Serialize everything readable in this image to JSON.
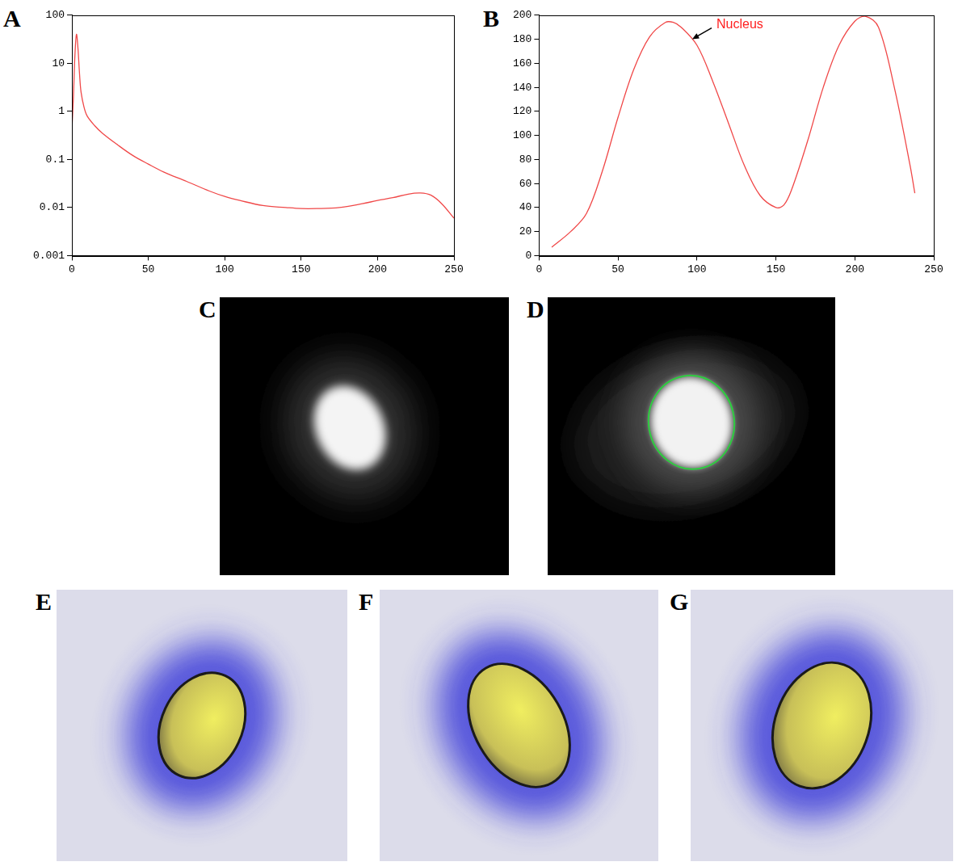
{
  "chart_data": [
    {
      "label": "A",
      "type": "line",
      "log": "y",
      "color": "#f04848",
      "grid": false,
      "x": [
        0,
        1,
        2,
        3,
        4,
        5,
        6,
        8,
        10,
        15,
        20,
        30,
        40,
        50,
        60,
        75,
        90,
        100,
        110,
        125,
        140,
        150,
        160,
        175,
        190,
        200,
        210,
        220,
        228,
        235,
        242,
        250
      ],
      "values": [
        0.4,
        2,
        15,
        40,
        20,
        6,
        2.5,
        1.2,
        0.8,
        0.5,
        0.35,
        0.2,
        0.12,
        0.08,
        0.055,
        0.035,
        0.022,
        0.017,
        0.014,
        0.011,
        0.01,
        0.0095,
        0.0095,
        0.01,
        0.012,
        0.014,
        0.016,
        0.019,
        0.02,
        0.018,
        0.012,
        0.006
      ],
      "xlim": [
        0,
        250
      ],
      "xticks": [
        0,
        50,
        100,
        150,
        200,
        250
      ],
      "ylim": [
        0.001,
        100
      ],
      "yticks": [
        0.001,
        0.01,
        0.1,
        1,
        10,
        100
      ]
    },
    {
      "label": "B",
      "type": "line",
      "color": "#f04848",
      "grid": false,
      "x": [
        8,
        20,
        30,
        40,
        50,
        60,
        70,
        80,
        85,
        90,
        100,
        110,
        120,
        130,
        140,
        150,
        155,
        160,
        170,
        180,
        190,
        200,
        207,
        215,
        225,
        235,
        238
      ],
      "values": [
        7,
        20,
        35,
        70,
        115,
        155,
        182,
        194,
        194,
        190,
        175,
        145,
        110,
        75,
        50,
        40,
        42,
        55,
        95,
        140,
        175,
        195,
        199,
        190,
        140,
        75,
        52
      ],
      "xlim": [
        0,
        250
      ],
      "xticks": [
        0,
        50,
        100,
        150,
        200,
        250
      ],
      "ylim": [
        0,
        200
      ],
      "yticks": [
        0,
        20,
        40,
        60,
        80,
        100,
        120,
        140,
        160,
        180,
        200
      ],
      "annotations": [
        {
          "text": "Nucleus",
          "x": 97,
          "y": 180
        }
      ]
    }
  ],
  "images": [
    {
      "label": "C"
    },
    {
      "label": "D"
    },
    {
      "label": "E"
    },
    {
      "label": "F"
    },
    {
      "label": "G"
    }
  ]
}
